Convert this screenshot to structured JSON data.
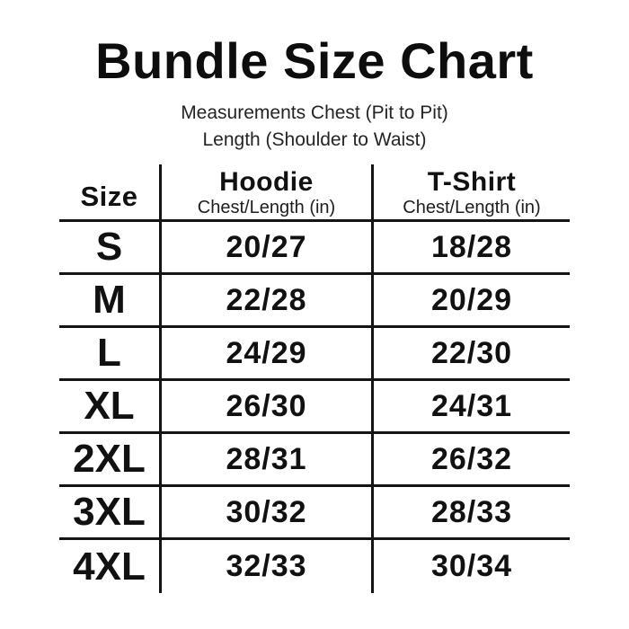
{
  "title": "Bundle Size Chart",
  "subtitle": {
    "line1": "Measurements Chest (Pit to Pit)",
    "line2": "Length (Shoulder to Waist)"
  },
  "table": {
    "size_header": "Size",
    "columns": [
      {
        "label": "Hoodie",
        "sublabel": "Chest/Length (in)"
      },
      {
        "label": "T-Shirt",
        "sublabel": "Chest/Length (in)"
      }
    ],
    "rows": [
      {
        "size": "S",
        "hoodie": "20/27",
        "tshirt": "18/28"
      },
      {
        "size": "M",
        "hoodie": "22/28",
        "tshirt": "20/29"
      },
      {
        "size": "L",
        "hoodie": "24/29",
        "tshirt": "22/30"
      },
      {
        "size": "XL",
        "hoodie": "26/30",
        "tshirt": "24/31"
      },
      {
        "size": "2XL",
        "hoodie": "28/31",
        "tshirt": "26/32"
      },
      {
        "size": "3XL",
        "hoodie": "30/32",
        "tshirt": "28/33"
      },
      {
        "size": "4XL",
        "hoodie": "32/33",
        "tshirt": "30/34"
      }
    ]
  },
  "colors": {
    "background": "#ffffff",
    "text": "#111111",
    "grid_line": "#141414"
  },
  "chart_data": {
    "type": "table",
    "title": "Bundle Size Chart",
    "subtitle": "Measurements Chest (Pit to Pit) / Length (Shoulder to Waist)",
    "categories": [
      "S",
      "M",
      "L",
      "XL",
      "2XL",
      "3XL",
      "4XL"
    ],
    "series": [
      {
        "name": "Hoodie Chest (in)",
        "values": [
          20,
          22,
          24,
          26,
          28,
          30,
          32
        ]
      },
      {
        "name": "Hoodie Length (in)",
        "values": [
          27,
          28,
          29,
          30,
          31,
          32,
          33
        ]
      },
      {
        "name": "T-Shirt Chest (in)",
        "values": [
          18,
          20,
          22,
          24,
          26,
          28,
          30
        ]
      },
      {
        "name": "T-Shirt Length (in)",
        "values": [
          28,
          29,
          30,
          31,
          32,
          33,
          34
        ]
      }
    ]
  }
}
